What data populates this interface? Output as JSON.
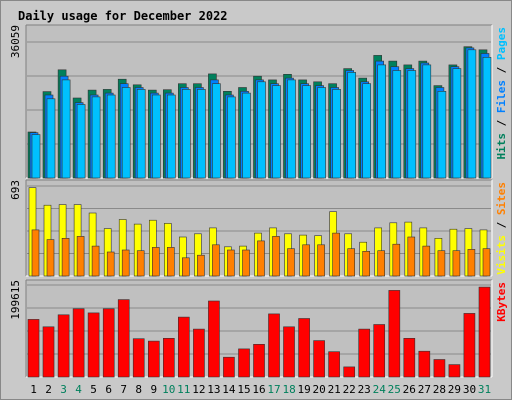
{
  "chart_data": {
    "type": "bar",
    "title": "Daily usage for December 2022",
    "categories": [
      "1",
      "2",
      "3",
      "4",
      "5",
      "6",
      "7",
      "8",
      "9",
      "10",
      "11",
      "12",
      "13",
      "14",
      "15",
      "16",
      "17",
      "18",
      "19",
      "20",
      "21",
      "22",
      "23",
      "24",
      "25",
      "26",
      "27",
      "28",
      "29",
      "30",
      "31"
    ],
    "weekend_days": [
      "3",
      "4",
      "10",
      "11",
      "17",
      "18",
      "24",
      "25",
      "31"
    ],
    "colors": {
      "background": "#ffffff",
      "frame": "#c9c9c9",
      "plot": "#c0c0c0",
      "title": "#0000cc",
      "hits": "#00805c",
      "files": "#0080ff",
      "pages": "#00c0ff",
      "visits": "#ffff00",
      "sites": "#ff8000",
      "kbytes": "#ff0000",
      "weekday_label": "#000000",
      "weekend_label": "#00805c"
    },
    "panels": [
      {
        "id": "hits-files-pages",
        "max_label": "36059",
        "ylim": [
          0,
          36059
        ],
        "legend": [
          {
            "text": "Hits",
            "color": "#00805c"
          },
          {
            "text": " / ",
            "color": "#000000"
          },
          {
            "text": "Files",
            "color": "#0080ff"
          },
          {
            "text": " / ",
            "color": "#000000"
          },
          {
            "text": "Pages",
            "color": "#00c0ff"
          }
        ],
        "series": [
          {
            "name": "Hits",
            "values": [
              12200,
              22900,
              28700,
              21200,
              23300,
              23500,
              26200,
              24700,
              23300,
              23400,
              25000,
              25000,
              27600,
              23000,
              24000,
              27000,
              26000,
              27500,
              26000,
              25500,
              25000,
              29000,
              26500,
              32500,
              31000,
              30000,
              31000,
              24500,
              30000,
              34800,
              34000
            ]
          },
          {
            "name": "Files",
            "values": [
              12000,
              22000,
              27000,
              20000,
              22000,
              22500,
              25000,
              24000,
              22500,
              22500,
              24000,
              24000,
              26000,
              22000,
              23000,
              26000,
              25000,
              26500,
              25000,
              24500,
              24000,
              28500,
              25500,
              31000,
              29500,
              29000,
              30500,
              24000,
              29500,
              34500,
              33000
            ]
          },
          {
            "name": "Pages",
            "values": [
              11500,
              21000,
              26000,
              19500,
              21500,
              22000,
              24000,
              23500,
              22000,
              22000,
              23500,
              23500,
              25000,
              21500,
              22500,
              25500,
              24500,
              26000,
              24500,
              24000,
              23500,
              28000,
              25000,
              30000,
              28500,
              28500,
              30000,
              23000,
              29000,
              34000,
              32000
            ]
          }
        ]
      },
      {
        "id": "visits-sites",
        "max_label": "693",
        "ylim": [
          0,
          693
        ],
        "legend": [
          {
            "text": "Visits",
            "color": "#ffff00"
          },
          {
            "text": " / ",
            "color": "#000000"
          },
          {
            "text": "Sites",
            "color": "#ff8000"
          }
        ],
        "series": [
          {
            "name": "Visits",
            "values": [
              680,
              545,
              550,
              550,
              485,
              365,
              435,
              400,
              430,
              405,
              300,
              325,
              370,
              225,
              230,
              330,
              370,
              325,
              315,
              310,
              495,
              325,
              260,
              370,
              410,
              415,
              370,
              290,
              360,
              365,
              355
            ]
          },
          {
            "name": "Sites",
            "values": [
              355,
              280,
              290,
              305,
              230,
              185,
              200,
              195,
              220,
              220,
              140,
              160,
              240,
              200,
              200,
              270,
              305,
              210,
              240,
              240,
              330,
              210,
              190,
              195,
              245,
              300,
              230,
              195,
              195,
              205,
              210
            ]
          }
        ]
      },
      {
        "id": "kbytes",
        "max_label": "199615",
        "ylim": [
          0,
          199615
        ],
        "legend": [
          {
            "text": "KBytes",
            "color": "#ff0000"
          }
        ],
        "series": [
          {
            "name": "KBytes",
            "values": [
              125000,
              109000,
              135000,
              148000,
              139000,
              148000,
              168000,
              83000,
              78000,
              84000,
              130000,
              104000,
              165000,
              43000,
              61000,
              71000,
              137000,
              109000,
              127000,
              79000,
              55000,
              22000,
              104000,
              114000,
              188000,
              84000,
              56000,
              38000,
              27000,
              138000,
              195000
            ]
          }
        ]
      }
    ]
  }
}
